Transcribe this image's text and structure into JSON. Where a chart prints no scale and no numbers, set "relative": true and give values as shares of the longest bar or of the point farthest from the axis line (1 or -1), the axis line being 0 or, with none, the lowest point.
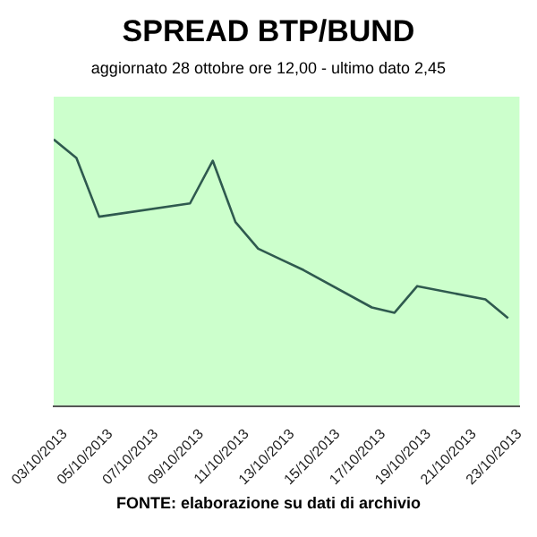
{
  "chart_data": {
    "type": "line",
    "title": "SPREAD BTP/BUND",
    "subtitle": "aggiornato 28 ottobre ore 12,00 - ultimo dato 2,45",
    "annotations": [
      "FONTE: elaborazione su dati di archivio"
    ],
    "relative": true,
    "marker": "none",
    "line_style": "solid",
    "legend": false,
    "x": [
      "2013-10-02T12:00",
      "2013-10-03T12:00",
      "2013-10-04T12:00",
      "2013-10-08T12:00",
      "2013-10-09T12:00",
      "2013-10-10T12:00",
      "2013-10-11T12:00",
      "2013-10-12T12:00",
      "2013-10-13T12:00",
      "2013-10-16T12:00",
      "2013-10-17T12:00",
      "2013-10-18T12:00",
      "2013-10-21T12:00",
      "2013-10-22T12:00"
    ],
    "xlim": [
      "2013-10-02T12:00",
      "2013-10-23T00:00"
    ],
    "xticks": [
      {
        "value": "2013-10-03",
        "label": "03/10/2013"
      },
      {
        "value": "2013-10-05",
        "label": "05/10/2013"
      },
      {
        "value": "2013-10-07",
        "label": "07/10/2013"
      },
      {
        "value": "2013-10-09",
        "label": "09/10/2013"
      },
      {
        "value": "2013-10-11",
        "label": "11/10/2013"
      },
      {
        "value": "2013-10-13",
        "label": "13/10/2013"
      },
      {
        "value": "2013-10-15",
        "label": "15/10/2013"
      },
      {
        "value": "2013-10-17",
        "label": "17/10/2013"
      },
      {
        "value": "2013-10-19",
        "label": "19/10/2013"
      },
      {
        "value": "2013-10-21",
        "label": "21/10/2013"
      },
      {
        "value": "2013-10-23",
        "label": "23/10/2013"
      }
    ],
    "series": [
      {
        "color": "#2f5a4f",
        "values": [
          1,
          0.93,
          0.71,
          0.76,
          0.92,
          0.69,
          0.59,
          0.55,
          0.51,
          0.37,
          0.35,
          0.45,
          0.4,
          0.33
        ]
      }
    ]
  }
}
